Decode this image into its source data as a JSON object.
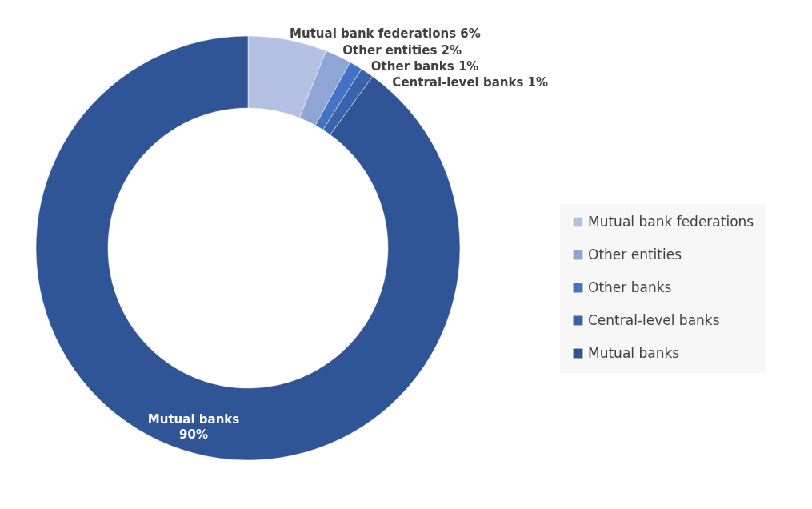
{
  "chart_data": {
    "type": "donut",
    "categories": [
      "Mutual bank federations",
      "Other entities",
      "Other banks",
      "Central-level banks",
      "Mutual banks"
    ],
    "values": [
      6,
      2,
      1,
      1,
      90
    ],
    "value_labels": [
      "6%",
      "2%",
      "1%",
      "1%",
      "90%"
    ],
    "colors": [
      "#b4c1e3",
      "#8fa5d6",
      "#4472c4",
      "#3a63ad",
      "#2f5597"
    ],
    "legend": "right"
  }
}
